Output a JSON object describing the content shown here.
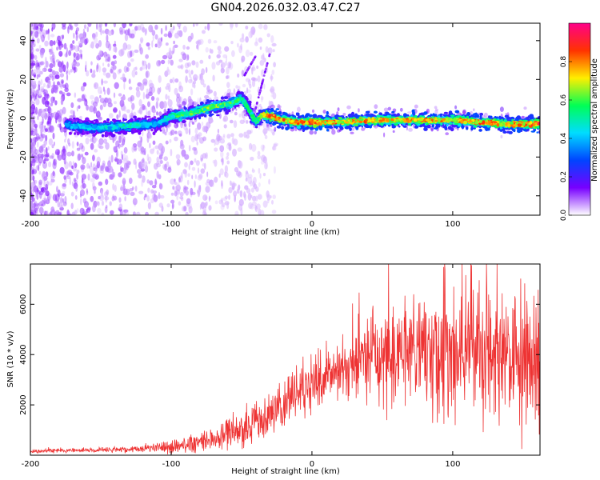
{
  "title": "GN04.2026.032.03.47.C27",
  "colors": {
    "snr_line": "#ee3333",
    "axis": "#000000",
    "background": "#ffffff"
  },
  "chart_data": [
    {
      "type": "heatmap",
      "name": "spectrogram",
      "xlabel": "Height of straight line (km)",
      "ylabel": "Frequency (Hz)",
      "xlim": [
        -200,
        162
      ],
      "ylim": [
        -50,
        49
      ],
      "xticks": [
        -200,
        -100,
        0,
        100
      ],
      "yticks": [
        -40,
        -20,
        0,
        20,
        40
      ],
      "xtick_labels": [
        "-200",
        "-100",
        "0",
        "100"
      ],
      "ytick_labels": [
        "-40",
        "-20",
        "0",
        "20",
        "40"
      ],
      "colorbar": {
        "label": "Normalized spectral amplitude",
        "range": [
          0,
          1
        ],
        "ticks": [
          0.0,
          0.2,
          0.4,
          0.6,
          0.8
        ],
        "tick_labels": [
          "0.0",
          "0.2",
          "0.4",
          "0.6",
          "0.8"
        ],
        "colormap": [
          "#ffffff",
          "#7700ff",
          "#0044ff",
          "#00ddff",
          "#00ff55",
          "#ffee00",
          "#ff3300",
          "#ff0088"
        ]
      },
      "ridge": {
        "x": [
          -200,
          -170,
          -150,
          -130,
          -110,
          -100,
          -90,
          -80,
          -70,
          -60,
          -50,
          -45,
          -40,
          -35,
          -30,
          -20,
          -10,
          0,
          20,
          40,
          60,
          80,
          100,
          120,
          140,
          162
        ],
        "freq": [
          0,
          -4,
          -5,
          -4,
          -3,
          1,
          2,
          4,
          6,
          7,
          10,
          5,
          -2,
          2,
          1,
          -1,
          -2,
          -2,
          -2,
          -1,
          -1,
          -1,
          -1,
          -2,
          -3,
          -3
        ],
        "amplitude": [
          0.3,
          0.4,
          0.45,
          0.5,
          0.4,
          0.55,
          0.6,
          0.6,
          0.65,
          0.6,
          0.55,
          0.55,
          0.6,
          0.75,
          0.85,
          0.8,
          0.8,
          0.85,
          0.8,
          0.8,
          0.75,
          0.8,
          0.75,
          0.8,
          0.8,
          0.85
        ]
      }
    },
    {
      "type": "line",
      "name": "snr",
      "xlabel": "Height of straight line (km)",
      "ylabel": "SNR (10 * v/v)",
      "xlim": [
        -200,
        162
      ],
      "ylim": [
        0,
        7600
      ],
      "xticks": [
        -200,
        -100,
        0,
        100
      ],
      "yticks": [
        2000,
        4000,
        6000
      ],
      "xtick_labels": [
        "-200",
        "-100",
        "0",
        "100"
      ],
      "ytick_labels": [
        "2000",
        "4000",
        "6000"
      ],
      "envelope": {
        "x": [
          -200,
          -150,
          -120,
          -100,
          -80,
          -60,
          -40,
          -25,
          -15,
          -5,
          0,
          10,
          20,
          30,
          40,
          60,
          80,
          100,
          120,
          140,
          162
        ],
        "mean": [
          150,
          200,
          250,
          350,
          500,
          800,
          1300,
          1800,
          2300,
          2500,
          2700,
          3000,
          3300,
          3700,
          3900,
          4000,
          4000,
          3900,
          4000,
          3800,
          3500
        ],
        "spread": [
          70,
          100,
          150,
          250,
          350,
          550,
          800,
          900,
          900,
          900,
          900,
          1000,
          1100,
          1500,
          1700,
          2000,
          2300,
          2500,
          2700,
          2800,
          2600
        ]
      }
    }
  ]
}
